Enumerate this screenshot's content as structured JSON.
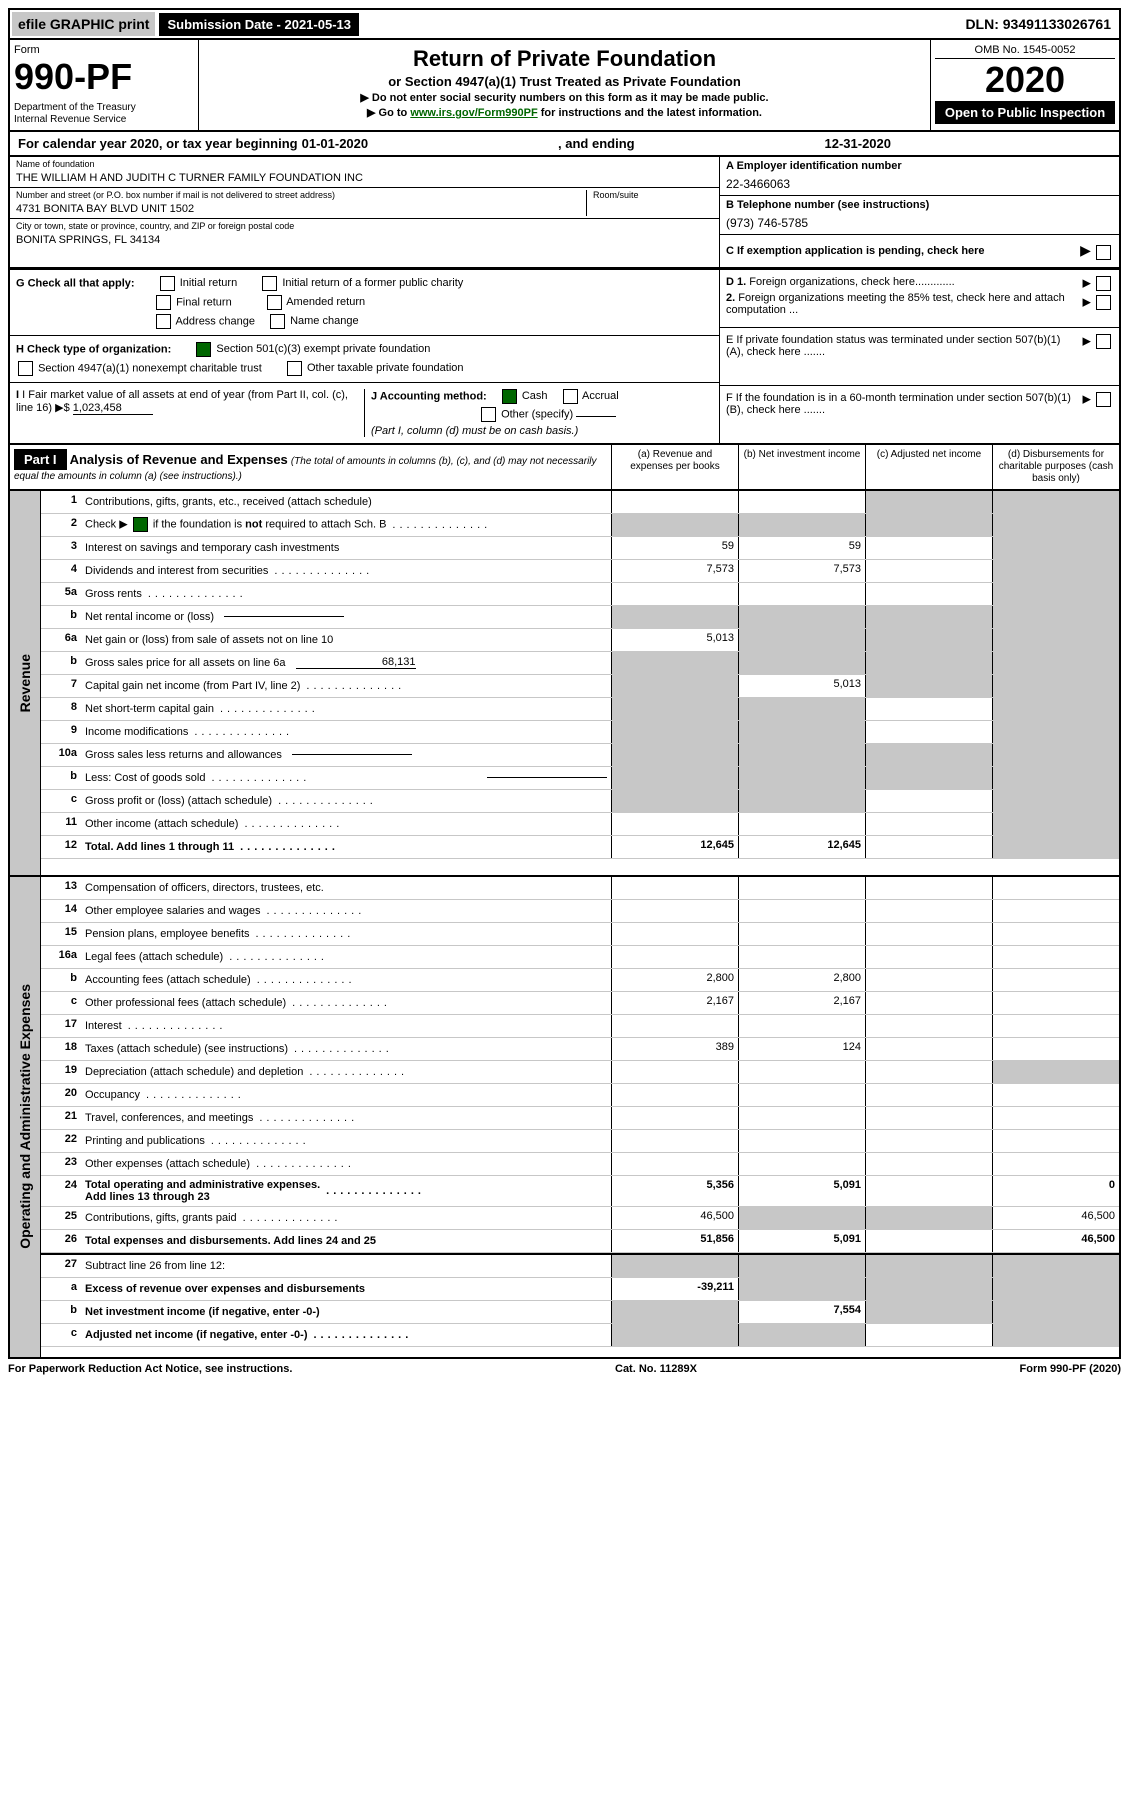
{
  "topbar": {
    "efile": "efile GRAPHIC print",
    "submission_label": "Submission Date - 2021-05-13",
    "dln": "DLN: 93491133026761"
  },
  "header": {
    "form_label": "Form",
    "form_number": "990-PF",
    "dept": "Department of the Treasury\nInternal Revenue Service",
    "title": "Return of Private Foundation",
    "subtitle": "or Section 4947(a)(1) Trust Treated as Private Foundation",
    "note1": "▶ Do not enter social security numbers on this form as it may be made public.",
    "note2_pre": "▶ Go to ",
    "note2_link": "www.irs.gov/Form990PF",
    "note2_post": " for instructions and the latest information.",
    "omb": "OMB No. 1545-0052",
    "tax_year": "2020",
    "open_public": "Open to Public Inspection"
  },
  "cal_year": {
    "prefix": "For calendar year 2020, or tax year beginning ",
    "begin": "01-01-2020",
    "mid": " , and ending ",
    "end": "12-31-2020"
  },
  "entity": {
    "name_label": "Name of foundation",
    "name": "THE WILLIAM H AND JUDITH C TURNER FAMILY FOUNDATION INC",
    "addr_label": "Number and street (or P.O. box number if mail is not delivered to street address)",
    "addr": "4731 BONITA BAY BLVD UNIT 1502",
    "room_label": "Room/suite",
    "city_label": "City or town, state or province, country, and ZIP or foreign postal code",
    "city": "BONITA SPRINGS, FL  34134",
    "ein_label": "A Employer identification number",
    "ein": "22-3466063",
    "phone_label": "B Telephone number (see instructions)",
    "phone": "(973) 746-5785",
    "exempt_label": "C If exemption application is pending, check here"
  },
  "sectionG": {
    "label": "G Check all that apply:",
    "opts": [
      "Initial return",
      "Initial return of a former public charity",
      "Final return",
      "Amended return",
      "Address change",
      "Name change"
    ]
  },
  "sectionH": {
    "label": "H Check type of organization:",
    "opt1": "Section 501(c)(3) exempt private foundation",
    "opt2": "Section 4947(a)(1) nonexempt charitable trust",
    "opt3": "Other taxable private foundation"
  },
  "sectionI": {
    "label": "I Fair market value of all assets at end of year (from Part II, col. (c), line 16)",
    "value": "1,023,458"
  },
  "sectionJ": {
    "label": "J Accounting method:",
    "cash": "Cash",
    "accrual": "Accrual",
    "other": "Other (specify)",
    "note": "(Part I, column (d) must be on cash basis.)"
  },
  "rightD": {
    "d1": "D 1. Foreign organizations, check here",
    "d2": "2. Foreign organizations meeting the 85% test, check here and attach computation ...",
    "e": "E  If private foundation status was terminated under section 507(b)(1)(A), check here .......",
    "f": "F  If the foundation is in a 60-month termination under section 507(b)(1)(B), check here ......."
  },
  "part1": {
    "label": "Part I",
    "title": "Analysis of Revenue and Expenses",
    "sub": "(The total of amounts in columns (b), (c), and (d) may not necessarily equal the amounts in column (a) (see instructions).)",
    "col_a": "(a) Revenue and expenses per books",
    "col_b": "(b) Net investment income",
    "col_c": "(c) Adjusted net income",
    "col_d": "(d) Disbursements for charitable purposes (cash basis only)"
  },
  "sidebar": {
    "revenue": "Revenue",
    "opex": "Operating and Administrative Expenses"
  },
  "lines": [
    {
      "n": "1",
      "d": "Contributions, gifts, grants, etc., received (attach schedule)",
      "a": "",
      "b": "",
      "c": "g",
      "dd": "g"
    },
    {
      "n": "2",
      "d": "Check ▶ ☑ if the foundation is not required to attach Sch. B",
      "dots": true,
      "a": "g",
      "b": "g",
      "c": "g",
      "dd": "g"
    },
    {
      "n": "3",
      "d": "Interest on savings and temporary cash investments",
      "a": "59",
      "b": "59",
      "c": "",
      "dd": "g"
    },
    {
      "n": "4",
      "d": "Dividends and interest from securities",
      "dots": true,
      "a": "7,573",
      "b": "7,573",
      "c": "",
      "dd": "g"
    },
    {
      "n": "5a",
      "d": "Gross rents",
      "dots": true,
      "a": "",
      "b": "",
      "c": "",
      "dd": "g"
    },
    {
      "n": "b",
      "d": "Net rental income or (loss)",
      "inline": true,
      "a": "g",
      "b": "g",
      "c": "g",
      "dd": "g"
    },
    {
      "n": "6a",
      "d": "Net gain or (loss) from sale of assets not on line 10",
      "a": "5,013",
      "b": "g",
      "c": "g",
      "dd": "g"
    },
    {
      "n": "b",
      "d": "Gross sales price for all assets on line 6a",
      "inline_val": "68,131",
      "a": "g",
      "b": "g",
      "c": "g",
      "dd": "g"
    },
    {
      "n": "7",
      "d": "Capital gain net income (from Part IV, line 2)",
      "dots": true,
      "a": "g",
      "b": "5,013",
      "c": "g",
      "dd": "g"
    },
    {
      "n": "8",
      "d": "Net short-term capital gain",
      "dots": true,
      "a": "g",
      "b": "g",
      "c": "",
      "dd": "g"
    },
    {
      "n": "9",
      "d": "Income modifications",
      "dots": true,
      "a": "g",
      "b": "g",
      "c": "",
      "dd": "g"
    },
    {
      "n": "10a",
      "d": "Gross sales less returns and allowances",
      "inline": true,
      "a": "g",
      "b": "g",
      "c": "g",
      "dd": "g"
    },
    {
      "n": "b",
      "d": "Less: Cost of goods sold",
      "dots": true,
      "inline": true,
      "a": "g",
      "b": "g",
      "c": "g",
      "dd": "g"
    },
    {
      "n": "c",
      "d": "Gross profit or (loss) (attach schedule)",
      "dots": true,
      "a": "g",
      "b": "g",
      "c": "",
      "dd": "g"
    },
    {
      "n": "11",
      "d": "Other income (attach schedule)",
      "dots": true,
      "a": "",
      "b": "",
      "c": "",
      "dd": "g"
    },
    {
      "n": "12",
      "d": "Total. Add lines 1 through 11",
      "dots": true,
      "bold": true,
      "a": "12,645",
      "b": "12,645",
      "c": "",
      "dd": "g"
    }
  ],
  "lines_opex": [
    {
      "n": "13",
      "d": "Compensation of officers, directors, trustees, etc.",
      "a": "",
      "b": "",
      "c": "",
      "dd": ""
    },
    {
      "n": "14",
      "d": "Other employee salaries and wages",
      "dots": true,
      "a": "",
      "b": "",
      "c": "",
      "dd": ""
    },
    {
      "n": "15",
      "d": "Pension plans, employee benefits",
      "dots": true,
      "a": "",
      "b": "",
      "c": "",
      "dd": ""
    },
    {
      "n": "16a",
      "d": "Legal fees (attach schedule)",
      "dots": true,
      "a": "",
      "b": "",
      "c": "",
      "dd": ""
    },
    {
      "n": "b",
      "d": "Accounting fees (attach schedule)",
      "dots": true,
      "a": "2,800",
      "b": "2,800",
      "c": "",
      "dd": ""
    },
    {
      "n": "c",
      "d": "Other professional fees (attach schedule)",
      "dots": true,
      "a": "2,167",
      "b": "2,167",
      "c": "",
      "dd": ""
    },
    {
      "n": "17",
      "d": "Interest",
      "dots": true,
      "a": "",
      "b": "",
      "c": "",
      "dd": ""
    },
    {
      "n": "18",
      "d": "Taxes (attach schedule) (see instructions)",
      "dots": true,
      "a": "389",
      "b": "124",
      "c": "",
      "dd": ""
    },
    {
      "n": "19",
      "d": "Depreciation (attach schedule) and depletion",
      "dots": true,
      "a": "",
      "b": "",
      "c": "",
      "dd": "g"
    },
    {
      "n": "20",
      "d": "Occupancy",
      "dots": true,
      "a": "",
      "b": "",
      "c": "",
      "dd": ""
    },
    {
      "n": "21",
      "d": "Travel, conferences, and meetings",
      "dots": true,
      "a": "",
      "b": "",
      "c": "",
      "dd": ""
    },
    {
      "n": "22",
      "d": "Printing and publications",
      "dots": true,
      "a": "",
      "b": "",
      "c": "",
      "dd": ""
    },
    {
      "n": "23",
      "d": "Other expenses (attach schedule)",
      "dots": true,
      "a": "",
      "b": "",
      "c": "",
      "dd": ""
    },
    {
      "n": "24",
      "d": "Total operating and administrative expenses. Add lines 13 through 23",
      "dots": true,
      "bold": true,
      "a": "5,356",
      "b": "5,091",
      "c": "",
      "dd": "0"
    },
    {
      "n": "25",
      "d": "Contributions, gifts, grants paid",
      "dots": true,
      "a": "46,500",
      "b": "g",
      "c": "g",
      "dd": "46,500"
    },
    {
      "n": "26",
      "d": "Total expenses and disbursements. Add lines 24 and 25",
      "bold": true,
      "a": "51,856",
      "b": "5,091",
      "c": "",
      "dd": "46,500"
    }
  ],
  "lines_net": [
    {
      "n": "27",
      "d": "Subtract line 26 from line 12:",
      "a": "g",
      "b": "g",
      "c": "g",
      "dd": "g"
    },
    {
      "n": "a",
      "d": "Excess of revenue over expenses and disbursements",
      "bold": true,
      "a": "-39,211",
      "b": "g",
      "c": "g",
      "dd": "g"
    },
    {
      "n": "b",
      "d": "Net investment income (if negative, enter -0-)",
      "bold": true,
      "a": "g",
      "b": "7,554",
      "c": "g",
      "dd": "g"
    },
    {
      "n": "c",
      "d": "Adjusted net income (if negative, enter -0-)",
      "dots": true,
      "bold": true,
      "a": "g",
      "b": "g",
      "c": "",
      "dd": "g"
    }
  ],
  "footer": {
    "left": "For Paperwork Reduction Act Notice, see instructions.",
    "mid": "Cat. No. 11289X",
    "right": "Form 990-PF (2020)"
  },
  "colors": {
    "grey": "#c7c7c7",
    "green": "#006600"
  }
}
